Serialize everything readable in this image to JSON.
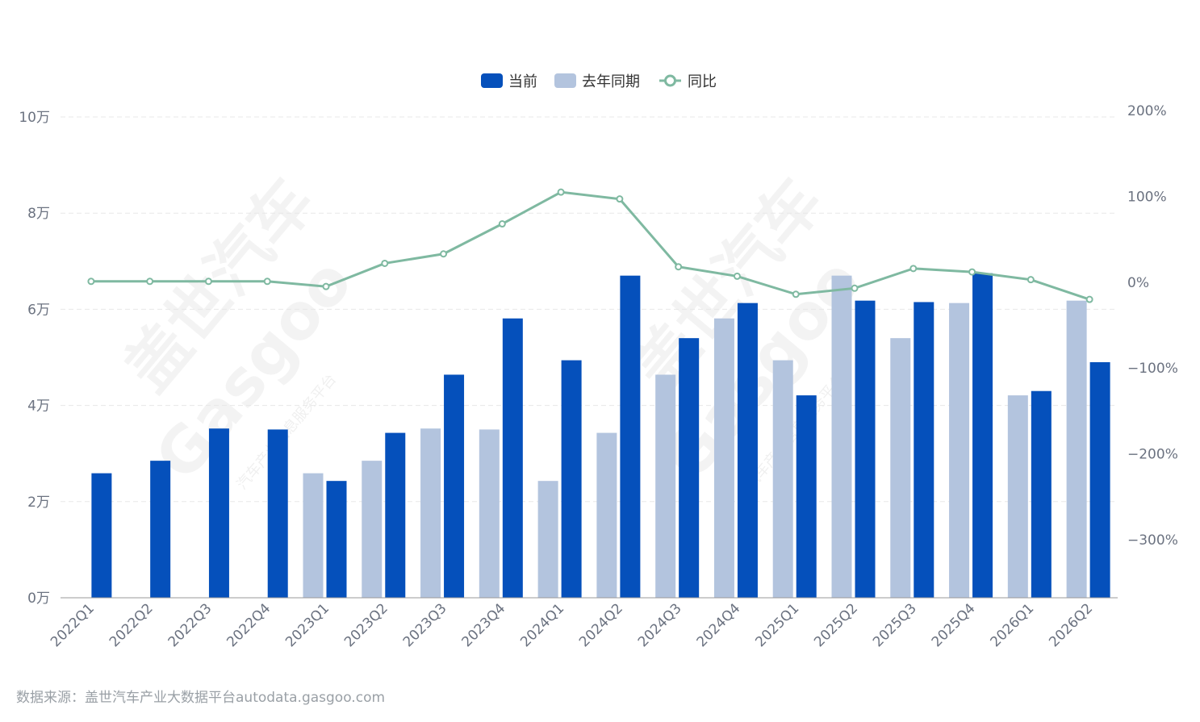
{
  "chart_data": {
    "type": "bar",
    "categories": [
      "2022Q1",
      "2022Q2",
      "2022Q3",
      "2022Q4",
      "2023Q1",
      "2023Q2",
      "2023Q3",
      "2023Q4",
      "2024Q1",
      "2024Q2",
      "2024Q3",
      "2024Q4",
      "2025Q1",
      "2025Q2",
      "2025Q3",
      "2025Q4",
      "2026Q1",
      "2026Q2"
    ],
    "series": [
      {
        "name": "当前",
        "type": "bar",
        "axis": "left",
        "color": "#0550bb",
        "values": [
          25900,
          28500,
          35200,
          35000,
          24300,
          34300,
          46400,
          58100,
          49400,
          67000,
          54000,
          61300,
          42100,
          61800,
          61500,
          67500,
          43000,
          49000
        ]
      },
      {
        "name": "去年同期",
        "type": "bar",
        "axis": "left",
        "color": "#b3c4de",
        "values": [
          null,
          null,
          null,
          null,
          25900,
          28500,
          35200,
          35000,
          24300,
          34300,
          46400,
          58100,
          49400,
          67000,
          54000,
          61300,
          42100,
          61800
        ]
      },
      {
        "name": "同比",
        "type": "line",
        "axis": "right",
        "color": "#7fb9a1",
        "values": [
          0,
          0,
          0,
          0,
          -6,
          21,
          32,
          67,
          104,
          96,
          17,
          6,
          -15,
          -8,
          15,
          11,
          2,
          -21
        ]
      }
    ],
    "y_left": {
      "min": 0,
      "max": 100000,
      "ticks": [
        0,
        20000,
        40000,
        60000,
        80000,
        100000
      ],
      "tick_labels": [
        "0万",
        "2万",
        "4万",
        "6万",
        "8万",
        "10万"
      ]
    },
    "y_right": {
      "min": -300,
      "max": 200,
      "ticks": [
        -300,
        -200,
        -100,
        0,
        100,
        200
      ],
      "tick_labels": [
        "−300%",
        "−200%",
        "−100%",
        "0%",
        "100%",
        "200%"
      ]
    },
    "grid": true,
    "legend": "top-center"
  },
  "watermark": {
    "brand": "盖世汽车",
    "logo_text": "Gasgoo",
    "tagline": "汽车产业信息服务平台"
  },
  "source": "数据来源：盖世汽车产业大数据平台autodata.gasgoo.com"
}
